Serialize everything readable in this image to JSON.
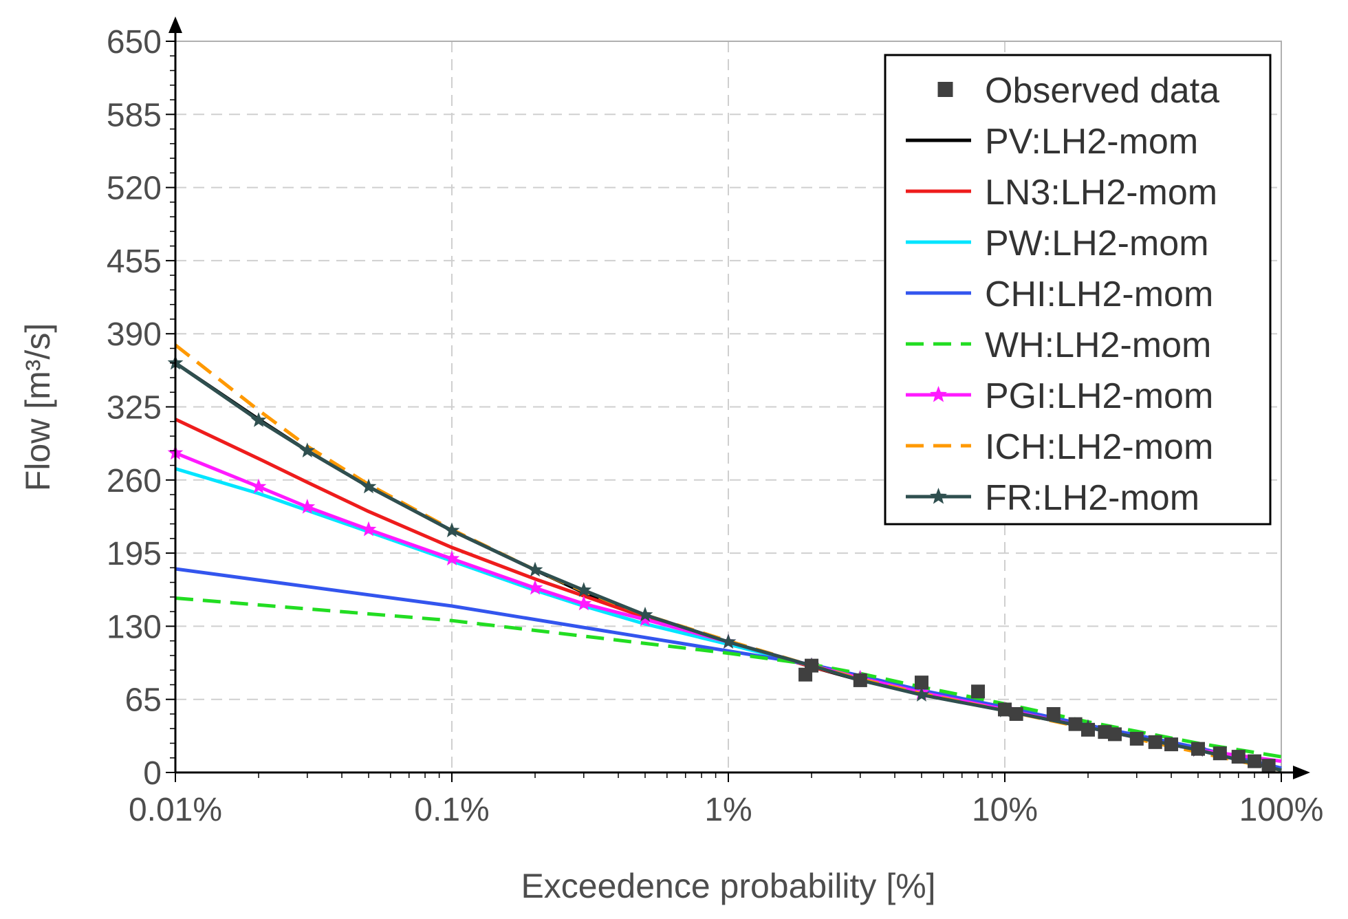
{
  "chart_data": {
    "type": "line",
    "x_scale": "log",
    "xlabel": "Exceedence probability [%]",
    "ylabel": "Flow [m³/s]",
    "xlim": [
      0.01,
      100
    ],
    "ylim": [
      0,
      650
    ],
    "x_ticks": [
      0.01,
      0.1,
      1,
      10,
      100
    ],
    "x_tick_labels": [
      "0.01%",
      "0.1%",
      "1%",
      "10%",
      "100%"
    ],
    "y_ticks": [
      0,
      65,
      130,
      195,
      260,
      325,
      390,
      455,
      520,
      585,
      650
    ],
    "y_tick_labels": [
      "0",
      "65",
      "130",
      "195",
      "260",
      "325",
      "390",
      "455",
      "520",
      "585",
      "650"
    ],
    "grid": true,
    "legend_position": "top-right",
    "series": [
      {
        "name": "Observed data",
        "kind": "points",
        "marker": "square",
        "color": "#404040",
        "x": [
          1.9,
          2.0,
          3.0,
          5.0,
          8.0,
          10.0,
          11.0,
          15.0,
          18.0,
          20.0,
          23.0,
          25.0,
          30.0,
          35.0,
          40.0,
          50.0,
          60.0,
          70.0,
          80.0,
          90.0
        ],
        "y": [
          87,
          95,
          82,
          80,
          72,
          56,
          52,
          52,
          43,
          38,
          36,
          34,
          30,
          27,
          25,
          21,
          17,
          14,
          10,
          6
        ]
      },
      {
        "name": "PV:LH2-mom",
        "kind": "line",
        "color": "#000000",
        "dash": "solid",
        "x": [
          0.01,
          0.02,
          0.03,
          0.05,
          0.1,
          0.2,
          0.3,
          0.5,
          1,
          2,
          3,
          5,
          10,
          20,
          50,
          100
        ],
        "y": [
          364,
          314,
          286,
          254,
          215,
          180,
          160,
          140,
          116,
          94,
          82,
          70,
          55,
          40,
          20,
          2
        ]
      },
      {
        "name": "LN3:LH2-mom",
        "kind": "line",
        "color": "#ee1c1c",
        "dash": "solid",
        "x": [
          0.01,
          0.02,
          0.03,
          0.05,
          0.1,
          0.2,
          0.3,
          0.5,
          1,
          2,
          3,
          5,
          10,
          20,
          50,
          100
        ],
        "y": [
          314,
          279,
          258,
          232,
          200,
          172,
          157,
          138,
          116,
          94,
          83,
          71,
          56,
          41,
          21,
          3
        ]
      },
      {
        "name": "PW:LH2-mom",
        "kind": "line",
        "color": "#00e5ff",
        "dash": "solid",
        "x": [
          0.01,
          0.02,
          0.03,
          0.05,
          0.1,
          0.2,
          0.3,
          0.5,
          1,
          2,
          3,
          5,
          10,
          20,
          50,
          100
        ],
        "y": [
          270,
          248,
          233,
          214,
          188,
          162,
          148,
          132,
          114,
          95,
          84,
          72,
          57,
          42,
          21,
          3
        ]
      },
      {
        "name": "CHI:LH2-mom",
        "kind": "line",
        "color": "#3355ee",
        "dash": "solid",
        "x": [
          0.01,
          0.1,
          1,
          2,
          3,
          5,
          10,
          20,
          50,
          100
        ],
        "y": [
          181,
          148,
          108,
          96,
          86,
          73,
          58,
          42,
          22,
          4
        ]
      },
      {
        "name": "WH:LH2-mom",
        "kind": "line",
        "color": "#22dd22",
        "dash": "dashed",
        "x": [
          0.01,
          0.1,
          1,
          2,
          3,
          5,
          10,
          20,
          50,
          100
        ],
        "y": [
          155,
          135,
          106,
          96,
          88,
          76,
          61,
          45,
          26,
          14
        ]
      },
      {
        "name": "PGI:LH2-mom",
        "kind": "line",
        "marker": "star",
        "color": "#ff1aff",
        "dash": "solid",
        "x": [
          0.01,
          0.02,
          0.03,
          0.05,
          0.1,
          0.2,
          0.3,
          0.5,
          1,
          2,
          3,
          5,
          10,
          20,
          50,
          100
        ],
        "y": [
          284,
          254,
          236,
          216,
          190,
          164,
          150,
          136,
          116,
          95,
          84,
          71,
          56,
          40,
          20,
          10
        ]
      },
      {
        "name": "ICH:LH2-mom",
        "kind": "line",
        "color": "#ff9900",
        "dash": "dashed",
        "x": [
          0.01,
          0.02,
          0.03,
          0.05,
          0.1,
          0.2,
          0.3,
          0.5,
          1,
          2,
          3,
          5,
          10,
          20,
          50,
          100
        ],
        "y": [
          380,
          322,
          290,
          256,
          216,
          180,
          161,
          140,
          117,
          95,
          83,
          70,
          55,
          39,
          18,
          2
        ]
      },
      {
        "name": "FR:LH2-mom",
        "kind": "line",
        "marker": "star",
        "color": "#2f4f4f",
        "dash": "solid",
        "x": [
          0.01,
          0.02,
          0.03,
          0.05,
          0.1,
          0.2,
          0.3,
          0.5,
          1,
          2,
          3,
          5,
          10,
          20,
          50,
          100
        ],
        "y": [
          364,
          313,
          286,
          254,
          215,
          180,
          162,
          140,
          116,
          95,
          82,
          69,
          55,
          40,
          20,
          2
        ]
      }
    ]
  }
}
